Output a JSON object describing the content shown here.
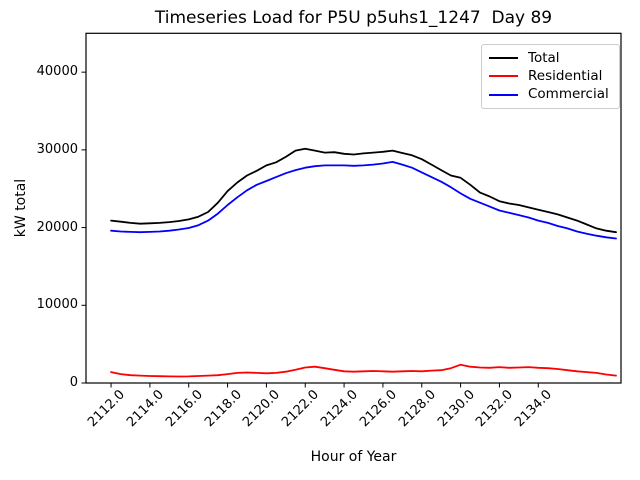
{
  "title": "Timeseries Load for P5U p5uhs1_1247  Day 89",
  "chart_data": {
    "type": "line",
    "title": "Timeseries Load for P5U p5uhs1_1247  Day 89",
    "xlabel": "Hour of Year",
    "ylabel": "kW total",
    "xlim": [
      2110.71,
      2138.26
    ],
    "ylim": [
      0,
      45000
    ],
    "grid": false,
    "legend_position": "upper right",
    "xticks": {
      "values": [
        2112,
        2114,
        2116,
        2118,
        2120,
        2122,
        2124,
        2126,
        2128,
        2130,
        2132,
        2134
      ],
      "labels": [
        "2112.0",
        "2114.0",
        "2116.0",
        "2118.0",
        "2120.0",
        "2122.0",
        "2124.0",
        "2126.0",
        "2128.0",
        "2130.0",
        "2132.0",
        "2134.0"
      ]
    },
    "yticks": {
      "values": [
        0,
        10000,
        20000,
        30000,
        40000
      ],
      "labels": [
        "0",
        "10000",
        "20000",
        "30000",
        "40000"
      ]
    },
    "x_start": 2112.0,
    "x_step": 0.5,
    "series": [
      {
        "name": "Total",
        "color": "#000000",
        "values": [
          20900,
          20750,
          20600,
          20500,
          20550,
          20600,
          20700,
          20850,
          21050,
          21400,
          22000,
          23200,
          24700,
          25800,
          26700,
          27300,
          28000,
          28400,
          29100,
          29900,
          30150,
          29900,
          29650,
          29700,
          29500,
          29400,
          29550,
          29650,
          29750,
          29900,
          29600,
          29300,
          28800,
          28100,
          27400,
          26700,
          26400,
          25500,
          24500,
          24000,
          23400,
          23100,
          22900,
          22600,
          22300,
          22000,
          21700,
          21300,
          20900,
          20400,
          19900,
          19600,
          19400
        ]
      },
      {
        "name": "Residential",
        "color": "#ff0000",
        "values": [
          1400,
          1150,
          1000,
          950,
          900,
          870,
          850,
          830,
          850,
          900,
          950,
          1000,
          1150,
          1300,
          1350,
          1300,
          1250,
          1300,
          1450,
          1700,
          2000,
          2100,
          1900,
          1700,
          1500,
          1450,
          1500,
          1550,
          1500,
          1450,
          1500,
          1550,
          1500,
          1600,
          1650,
          1900,
          2350,
          2100,
          2000,
          1950,
          2050,
          1950,
          2000,
          2050,
          1950,
          1900,
          1800,
          1650,
          1500,
          1400,
          1300,
          1100,
          950
        ]
      },
      {
        "name": "Commercial",
        "color": "#0000ff",
        "values": [
          19600,
          19500,
          19450,
          19400,
          19450,
          19500,
          19600,
          19750,
          19950,
          20300,
          20900,
          21800,
          22900,
          23900,
          24800,
          25500,
          26000,
          26500,
          27000,
          27400,
          27700,
          27900,
          28000,
          28000,
          28000,
          27950,
          28000,
          28100,
          28250,
          28450,
          28100,
          27700,
          27100,
          26500,
          25900,
          25200,
          24400,
          23700,
          23200,
          22700,
          22200,
          21900,
          21600,
          21300,
          20900,
          20600,
          20200,
          19900,
          19500,
          19200,
          18950,
          18750,
          18600
        ]
      }
    ]
  }
}
